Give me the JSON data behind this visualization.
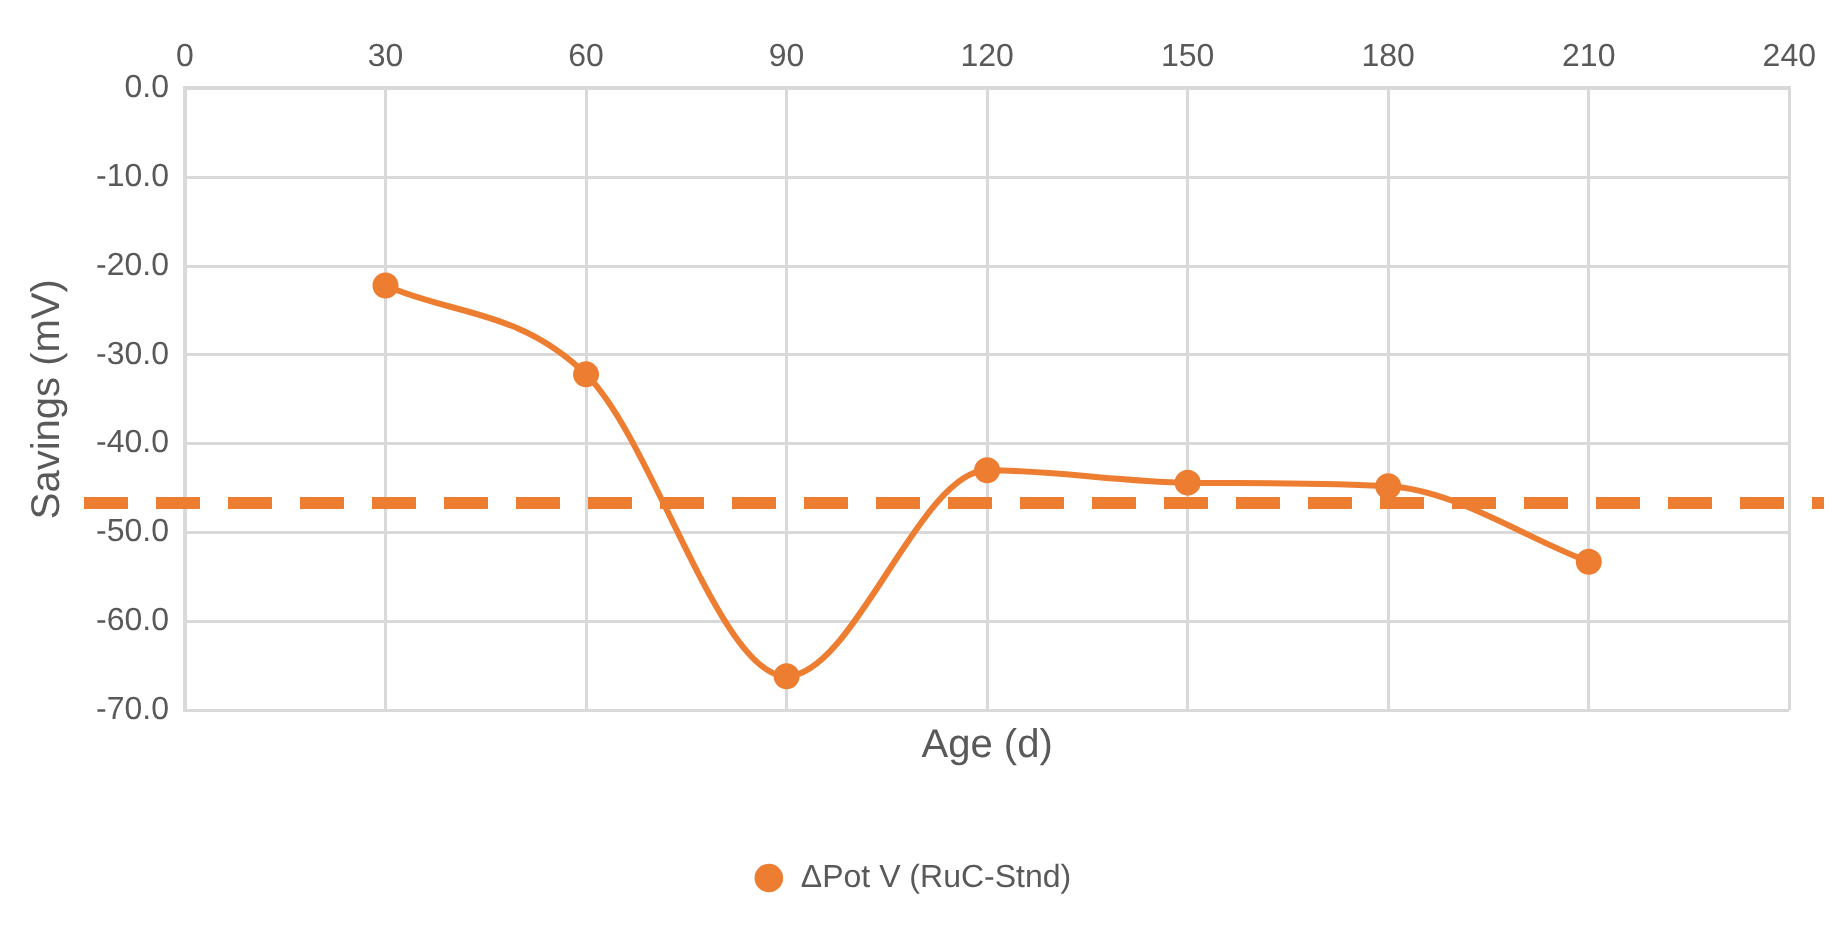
{
  "chart_data": {
    "type": "line",
    "xlabel": "Age (d)",
    "ylabel": "Savings (mV)",
    "x": [
      30,
      60,
      90,
      120,
      150,
      180,
      210
    ],
    "series": [
      {
        "name": "ΔPot V (RuC-Stnd)",
        "color": "#ed7d31",
        "values": [
          -22.2,
          -32.2,
          -66.2,
          -43.0,
          -44.4,
          -44.8,
          -53.3
        ]
      }
    ],
    "xlim": [
      0,
      240
    ],
    "xticks": [
      0,
      30,
      60,
      90,
      120,
      150,
      180,
      210,
      240
    ],
    "ylim": [
      -70,
      0
    ],
    "yticks": [
      {
        "value": 0,
        "label": "0.0"
      },
      {
        "value": -10,
        "label": "-10.0"
      },
      {
        "value": -20,
        "label": "-20.0"
      },
      {
        "value": -30,
        "label": "-30.0"
      },
      {
        "value": -40,
        "label": "-40.0"
      },
      {
        "value": -50,
        "label": "-50.0"
      },
      {
        "value": -60,
        "label": "-60.0"
      },
      {
        "value": -70,
        "label": "-70.0"
      }
    ],
    "ref_lines": [
      {
        "axis": "y",
        "value": -46.7,
        "color": "#ed7d31",
        "line_style": "dashed"
      }
    ],
    "grid": true,
    "legend": "bottom",
    "marker": "circle",
    "line_style": "solid"
  }
}
